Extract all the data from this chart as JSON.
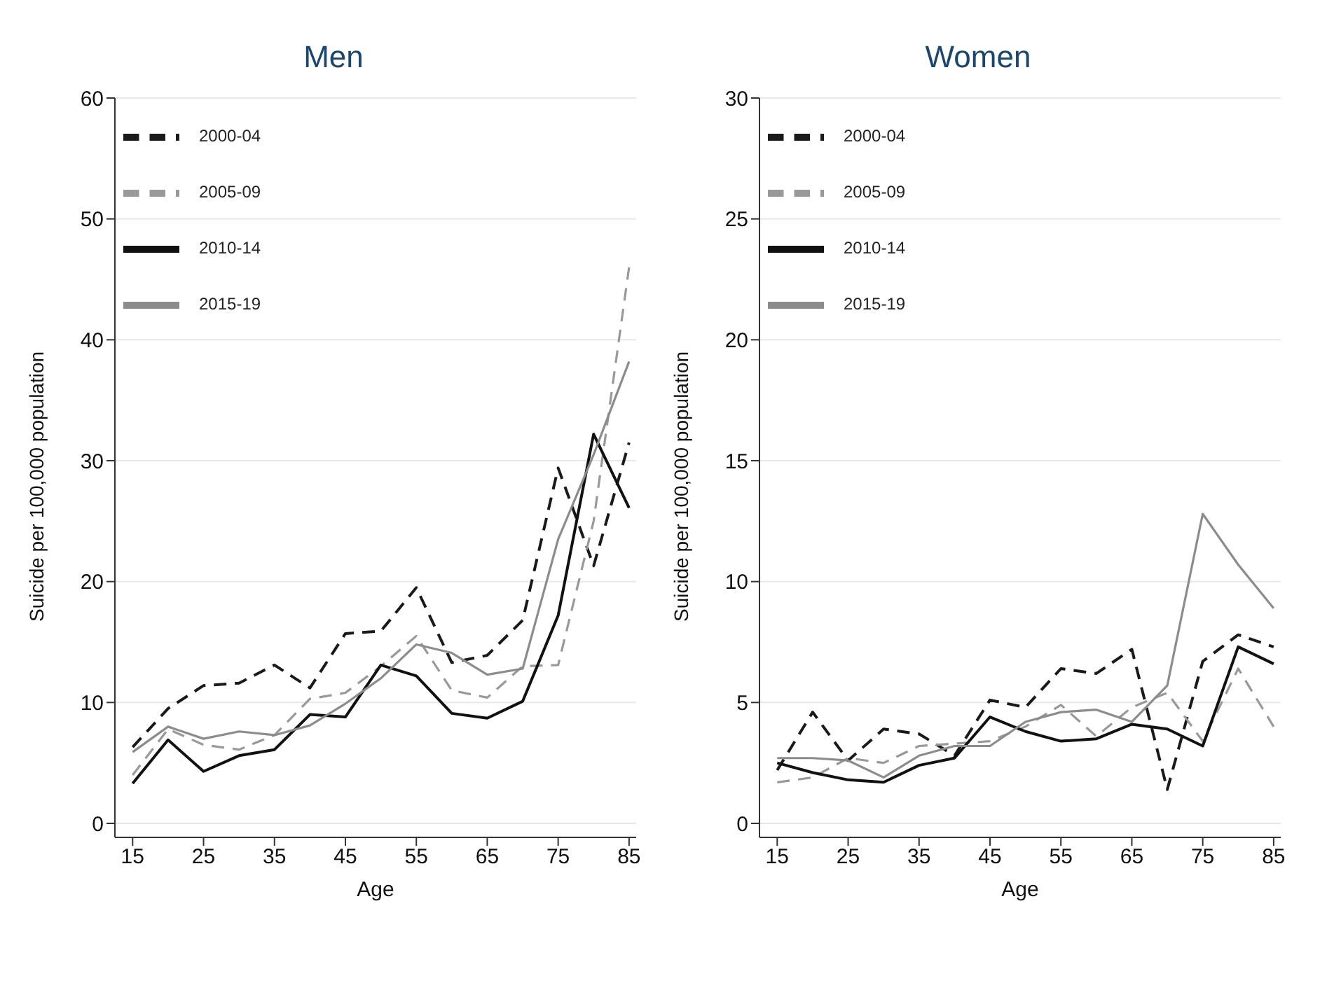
{
  "chart_data": [
    {
      "type": "line",
      "title": "Men",
      "xlabel": "Age",
      "ylabel": "Suicide per 100,000 population",
      "x": [
        15,
        20,
        25,
        30,
        35,
        40,
        45,
        50,
        55,
        60,
        65,
        70,
        75,
        80,
        85
      ],
      "series": [
        {
          "name": "2000-04",
          "color": "#1a1a1a",
          "line_style": "dashed",
          "values": [
            6.3,
            9.5,
            11.4,
            11.6,
            13.1,
            11.2,
            15.7,
            15.9,
            19.5,
            13.3,
            13.9,
            16.8,
            29.4,
            21.3,
            31.5
          ]
        },
        {
          "name": "2005-09",
          "color": "#999999",
          "line_style": "dashed",
          "values": [
            4.0,
            7.8,
            6.5,
            6.1,
            7.3,
            10.3,
            10.8,
            13.0,
            15.5,
            11.0,
            10.4,
            13.0,
            13.1,
            25.0,
            46.0
          ]
        },
        {
          "name": "2010-14",
          "color": "#111111",
          "line_style": "solid",
          "values": [
            3.3,
            6.9,
            4.3,
            5.6,
            6.1,
            9.0,
            8.8,
            13.1,
            12.2,
            9.1,
            8.7,
            10.1,
            17.2,
            32.2,
            26.1
          ]
        },
        {
          "name": "2015-19",
          "color": "#8c8c8c",
          "line_style": "solid",
          "values": [
            5.9,
            8.0,
            7.0,
            7.6,
            7.3,
            8.1,
            9.9,
            12.0,
            14.8,
            14.1,
            12.3,
            12.8,
            23.5,
            30.5,
            38.2
          ]
        }
      ],
      "xlim": [
        12.5,
        86
      ],
      "xticks": [
        15,
        25,
        35,
        45,
        55,
        65,
        75,
        85
      ],
      "ylim": [
        0,
        60
      ],
      "yticks": [
        0,
        10,
        20,
        30,
        40,
        50,
        60
      ],
      "grid": "y",
      "legend": "top left",
      "marker": "none"
    },
    {
      "type": "line",
      "title": "Women",
      "xlabel": "Age",
      "ylabel": "Suicide per 100,000 population",
      "x": [
        15,
        20,
        25,
        30,
        35,
        40,
        45,
        50,
        55,
        60,
        65,
        70,
        75,
        80,
        85
      ],
      "series": [
        {
          "name": "2000-04",
          "color": "#1a1a1a",
          "line_style": "dashed",
          "values": [
            2.2,
            4.6,
            2.6,
            3.9,
            3.7,
            2.8,
            5.1,
            4.8,
            6.4,
            6.2,
            7.2,
            1.4,
            6.7,
            7.8,
            7.3
          ]
        },
        {
          "name": "2005-09",
          "color": "#999999",
          "line_style": "dashed",
          "values": [
            1.7,
            1.9,
            2.7,
            2.5,
            3.2,
            3.3,
            3.4,
            4.0,
            4.9,
            3.6,
            4.8,
            5.4,
            3.4,
            6.4,
            4.0
          ]
        },
        {
          "name": "2010-14",
          "color": "#111111",
          "line_style": "solid",
          "values": [
            2.5,
            2.1,
            1.8,
            1.7,
            2.4,
            2.7,
            4.4,
            3.8,
            3.4,
            3.5,
            4.1,
            3.9,
            3.2,
            7.3,
            6.6
          ]
        },
        {
          "name": "2015-19",
          "color": "#8c8c8c",
          "line_style": "solid",
          "values": [
            2.7,
            2.7,
            2.6,
            1.9,
            2.8,
            3.2,
            3.2,
            4.2,
            4.6,
            4.7,
            4.2,
            5.7,
            12.8,
            10.7,
            8.9
          ]
        }
      ],
      "xlim": [
        12.5,
        86
      ],
      "xticks": [
        15,
        25,
        35,
        45,
        55,
        65,
        75,
        85
      ],
      "ylim": [
        0,
        30
      ],
      "yticks": [
        0,
        5,
        10,
        15,
        20,
        25,
        30
      ],
      "grid": "y",
      "legend": "top left",
      "marker": "none"
    }
  ]
}
